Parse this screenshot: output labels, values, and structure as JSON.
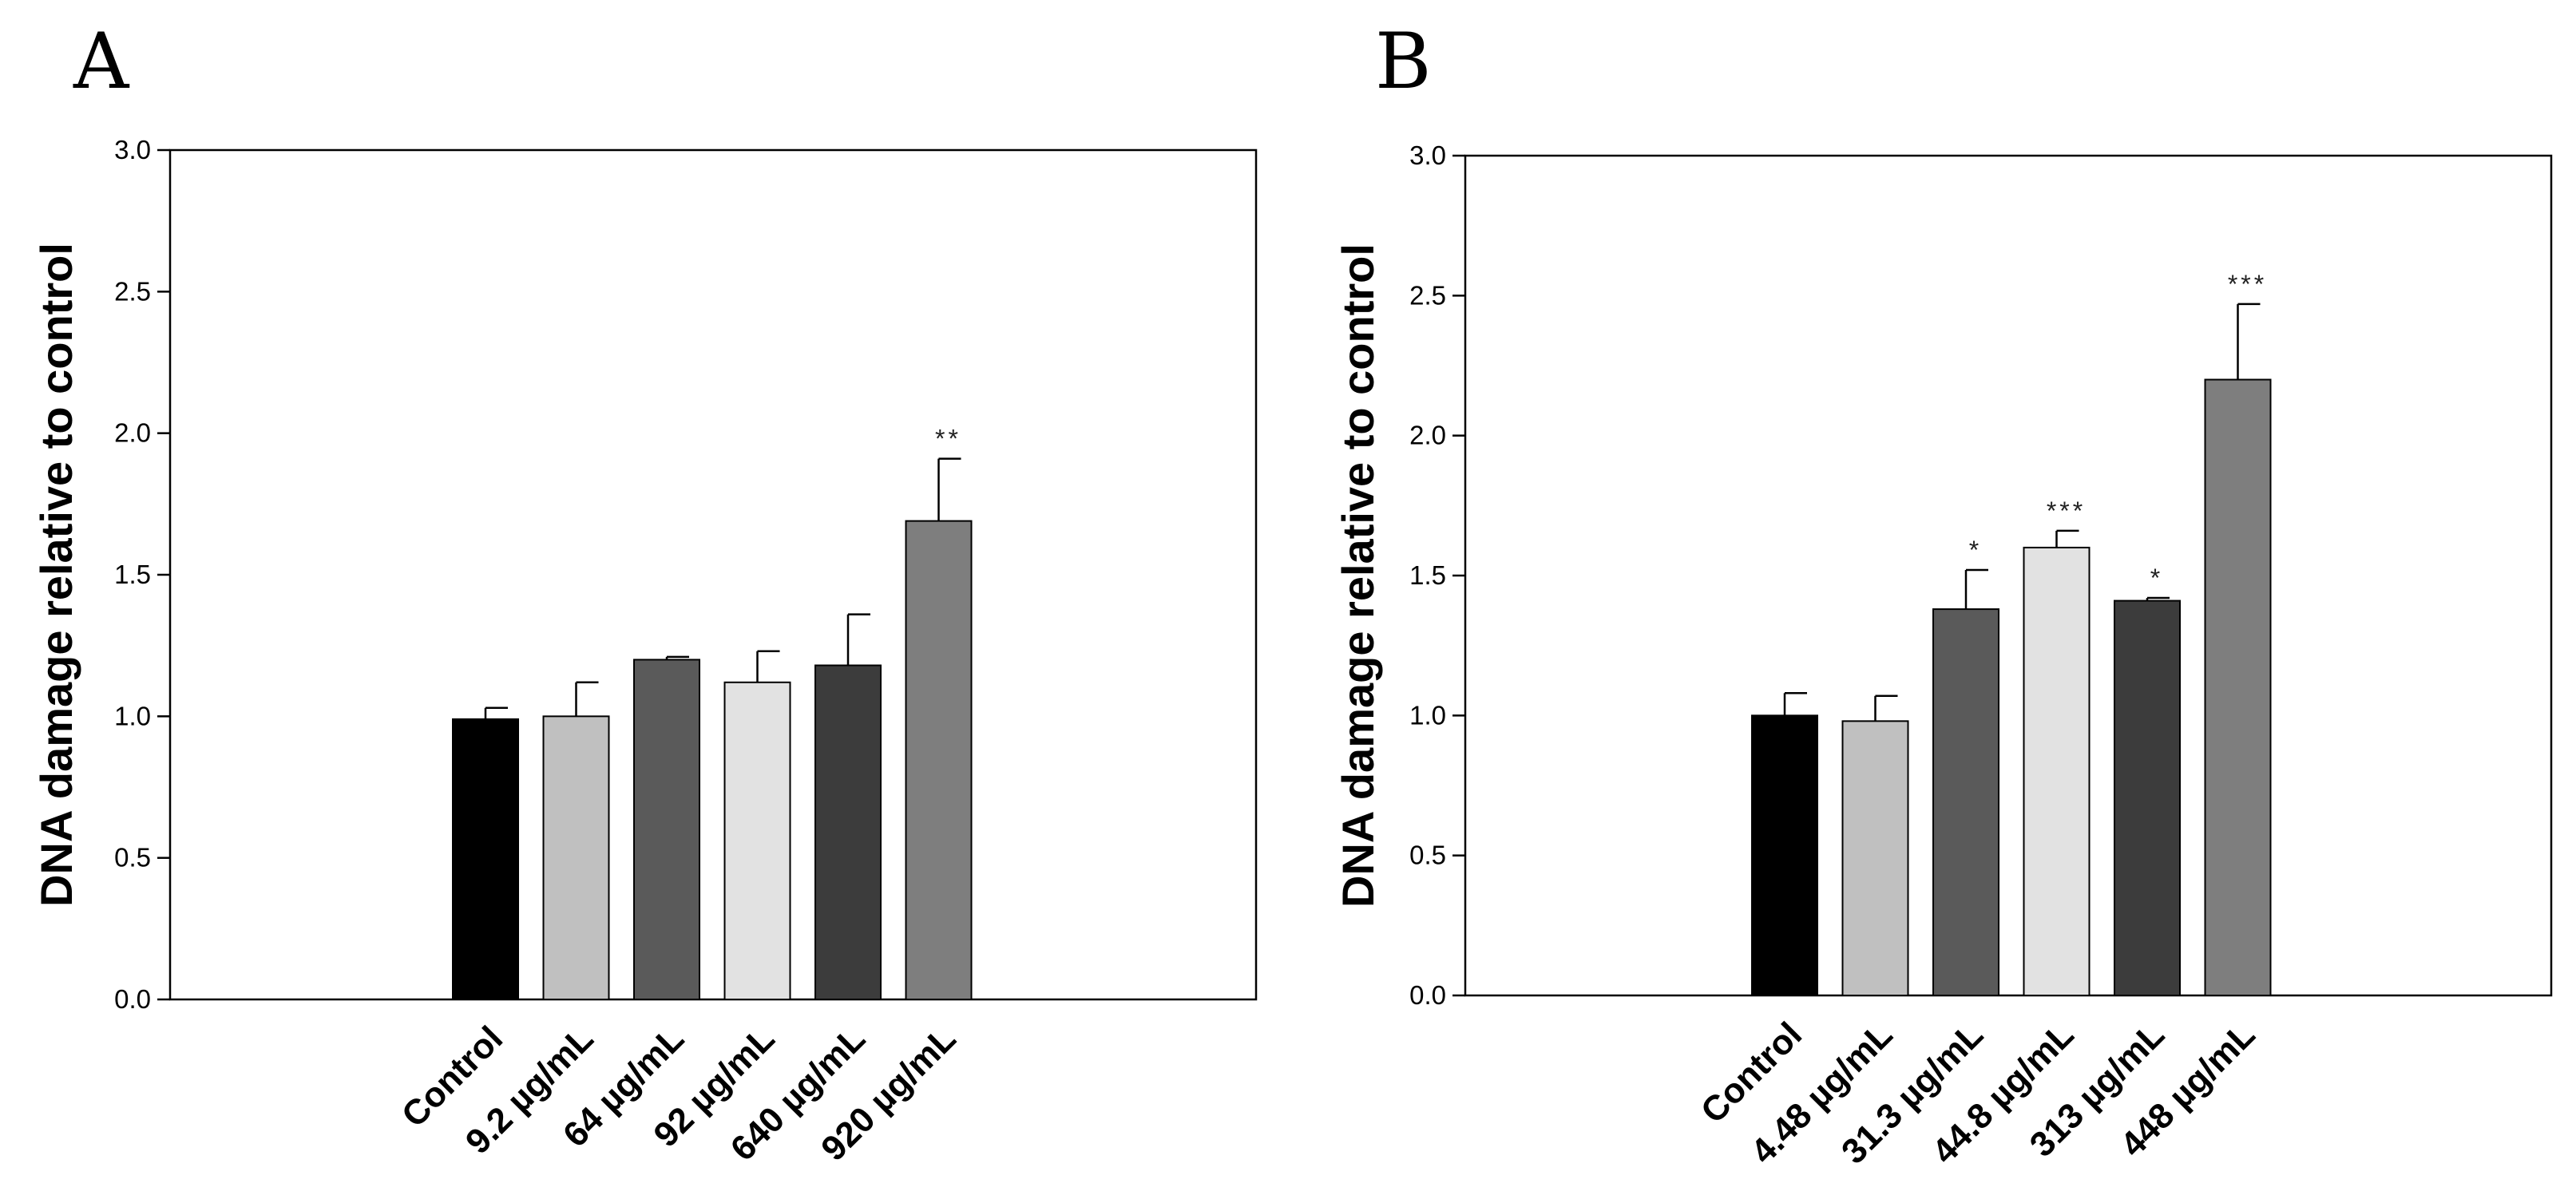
{
  "chart_data": [
    {
      "panel_label": "A",
      "type": "bar",
      "ylabel": "DNA damage relative to control",
      "ylim": [
        0,
        3.0
      ],
      "yticks": [
        "0.0",
        "0.5",
        "1.0",
        "1.5",
        "2.0",
        "2.5",
        "3.0"
      ],
      "categories": [
        "Control",
        "9.2 µg/mL",
        "64 µg/mL",
        "92 µg/mL",
        "640 µg/mL",
        "920 µg/mL"
      ],
      "values": [
        0.99,
        1.0,
        1.2,
        1.12,
        1.18,
        1.69
      ],
      "errors": [
        0.04,
        0.12,
        0.01,
        0.11,
        0.18,
        0.22
      ],
      "significance": [
        "",
        "",
        "",
        "",
        "",
        "**"
      ],
      "colors": [
        "#000000",
        "#c0c0c0",
        "#5a5a5a",
        "#e2e2e2",
        "#3c3c3c",
        "#7e7e7e"
      ]
    },
    {
      "panel_label": "B",
      "type": "bar",
      "ylabel": "DNA damage relative to control",
      "ylim": [
        0,
        3.0
      ],
      "yticks": [
        "0.0",
        "0.5",
        "1.0",
        "1.5",
        "2.0",
        "2.5",
        "3.0"
      ],
      "categories": [
        "Control",
        "4.48 µg/mL",
        "31.3 µg/mL",
        "44.8 µg/mL",
        "313 µg/mL",
        "448 µg/mL"
      ],
      "values": [
        1.0,
        0.98,
        1.38,
        1.6,
        1.41,
        2.2
      ],
      "errors": [
        0.08,
        0.09,
        0.14,
        0.06,
        0.01,
        0.27
      ],
      "significance": [
        "",
        "",
        "*",
        "***",
        "*",
        "***"
      ],
      "colors": [
        "#000000",
        "#c0c0c0",
        "#5a5a5a",
        "#e2e2e2",
        "#3c3c3c",
        "#7e7e7e"
      ]
    }
  ]
}
